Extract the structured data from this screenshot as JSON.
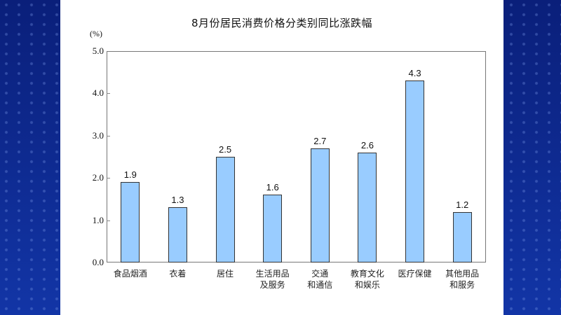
{
  "chart_data": {
    "type": "bar",
    "title": "8月份居民消费价格分类别同比涨跌幅",
    "xlabel": "",
    "ylabel": "(%)",
    "ylim": [
      0,
      5.0
    ],
    "yticks": [
      "0.0",
      "1.0",
      "2.0",
      "3.0",
      "4.0",
      "5.0"
    ],
    "grid": false,
    "legend": null,
    "categories": [
      "食品烟酒",
      "衣着",
      "居住",
      "生活用品\n及服务",
      "交通\n和通信",
      "教育文化\n和娱乐",
      "医疗保健",
      "其他用品\n和服务"
    ],
    "values": [
      1.9,
      1.3,
      2.5,
      1.6,
      2.7,
      2.6,
      4.3,
      1.2
    ],
    "value_labels": [
      "1.9",
      "1.3",
      "2.5",
      "1.6",
      "2.7",
      "2.6",
      "4.3",
      "1.2"
    ],
    "colors": {
      "bar_fill": "#99ccff",
      "bar_border": "#333333",
      "background": "#0f2a8e",
      "panel": "#ffffff"
    }
  }
}
